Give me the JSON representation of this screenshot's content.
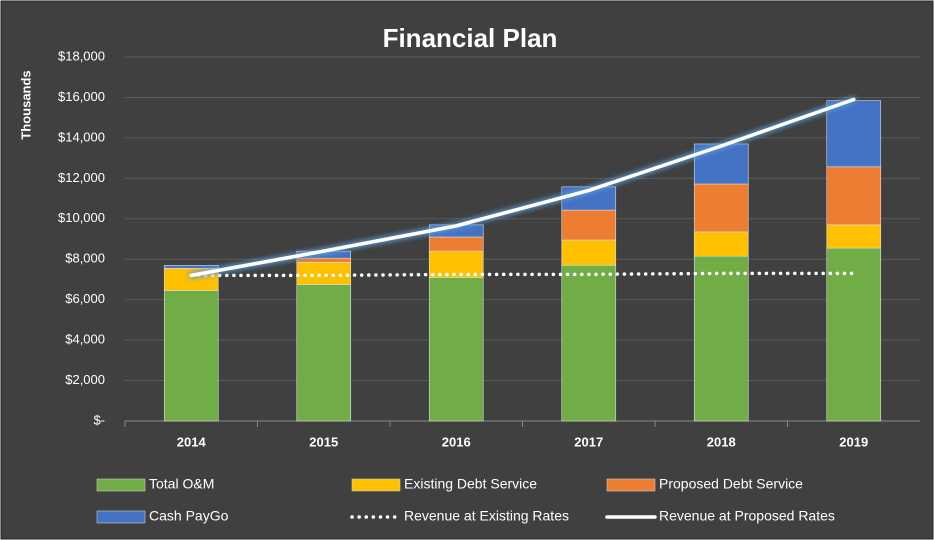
{
  "chart_data": {
    "type": "bar",
    "stacked": true,
    "title": "Financial Plan",
    "y_label": "Thousands",
    "categories": [
      "2014",
      "2015",
      "2016",
      "2017",
      "2018",
      "2019"
    ],
    "series": [
      {
        "name": "Total O&M",
        "type": "bar",
        "color": "#70ad47",
        "values": [
          6450,
          6750,
          7100,
          7700,
          8150,
          8550
        ]
      },
      {
        "name": "Existing Debt Service",
        "type": "bar",
        "color": "#ffc000",
        "values": [
          1100,
          1100,
          1300,
          1250,
          1200,
          1150
        ]
      },
      {
        "name": "Proposed Debt Service",
        "type": "bar",
        "color": "#ed7d31",
        "values": [
          0,
          200,
          700,
          1480,
          2370,
          2870
        ]
      },
      {
        "name": "Cash PayGo",
        "type": "bar",
        "color": "#4472c4",
        "values": [
          150,
          350,
          600,
          1150,
          1980,
          3270
        ]
      },
      {
        "name": "Revenue at Existing Rates",
        "type": "line",
        "style": "dotted",
        "color": "#ffffff",
        "values": [
          7200,
          7200,
          7250,
          7250,
          7300,
          7300
        ]
      },
      {
        "name": "Revenue at Proposed Rates",
        "type": "line",
        "style": "solid",
        "glow": true,
        "color": "#ffffff",
        "values": [
          7200,
          8400,
          9650,
          11400,
          13600,
          15900
        ]
      }
    ],
    "ylim": [
      0,
      18000
    ],
    "yticks": [
      {
        "value": 0,
        "label": "$-"
      },
      {
        "value": 2000,
        "label": "$2,000"
      },
      {
        "value": 4000,
        "label": "$4,000"
      },
      {
        "value": 6000,
        "label": "$6,000"
      },
      {
        "value": 8000,
        "label": "$8,000"
      },
      {
        "value": 10000,
        "label": "$10,000"
      },
      {
        "value": 12000,
        "label": "$12,000"
      },
      {
        "value": 14000,
        "label": "$14,000"
      },
      {
        "value": 16000,
        "label": "$16,000"
      },
      {
        "value": 18000,
        "label": "$18,000"
      }
    ],
    "grid": true,
    "legend": "bottom"
  }
}
